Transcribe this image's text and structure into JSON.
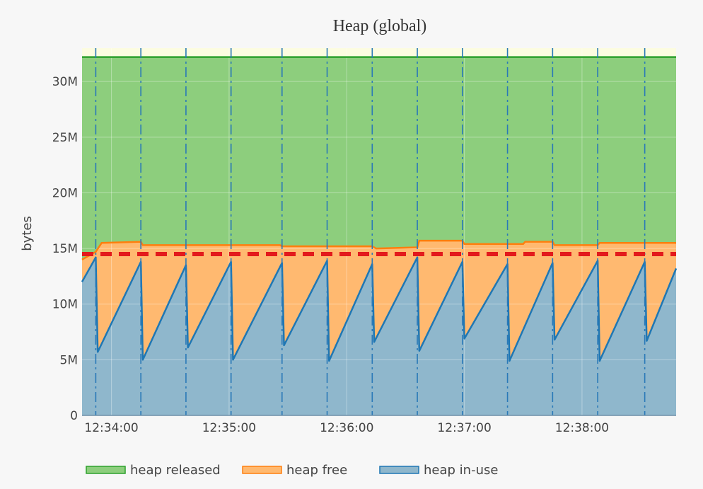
{
  "chart_data": {
    "type": "area",
    "title": "Heap (global)",
    "xlabel": "",
    "ylabel": "bytes",
    "x_range": [
      "12:33:45",
      "12:38:48"
    ],
    "ylim": [
      0,
      33000000
    ],
    "y_ticks": [
      {
        "value": 0,
        "label": "0"
      },
      {
        "value": 5000000,
        "label": "5M"
      },
      {
        "value": 10000000,
        "label": "10M"
      },
      {
        "value": 15000000,
        "label": "15M"
      },
      {
        "value": 20000000,
        "label": "20M"
      },
      {
        "value": 25000000,
        "label": "25M"
      },
      {
        "value": 30000000,
        "label": "30M"
      }
    ],
    "x_ticks": [
      {
        "time": "12:34:00",
        "label": "12:34:00"
      },
      {
        "time": "12:35:00",
        "label": "12:35:00"
      },
      {
        "time": "12:36:00",
        "label": "12:36:00"
      },
      {
        "time": "12:37:00",
        "label": "12:37:00"
      },
      {
        "time": "12:38:00",
        "label": "12:38:00"
      }
    ],
    "grid": true,
    "legend_position": "bottom",
    "gc_events": [
      "12:33:52",
      "12:34:15",
      "12:34:38",
      "12:35:01",
      "12:35:27",
      "12:35:50",
      "12:36:13",
      "12:36:36",
      "12:36:59",
      "12:37:22",
      "12:37:45",
      "12:38:08",
      "12:38:32"
    ],
    "next_gc_target": 14500000,
    "heap_released_total": 32200000,
    "heap_free_top": {
      "time": [
        "12:33:45",
        "12:33:52",
        "12:33:55",
        "12:34:15",
        "12:34:16",
        "12:35:26",
        "12:35:27",
        "12:36:13",
        "12:36:15",
        "12:36:36",
        "12:36:37",
        "12:36:59",
        "12:37:00",
        "12:37:30",
        "12:37:31",
        "12:37:45",
        "12:37:46",
        "12:38:08",
        "12:38:09",
        "12:38:48"
      ],
      "bytes": [
        14000000,
        14700000,
        15500000,
        15600000,
        15300000,
        15300000,
        15200000,
        15200000,
        15000000,
        15100000,
        15700000,
        15700000,
        15400000,
        15400000,
        15600000,
        15600000,
        15300000,
        15300000,
        15500000,
        15500000
      ]
    },
    "series": [
      {
        "name": "heap released",
        "color": "#2ca02c",
        "fill": "#8dce7d"
      },
      {
        "name": "heap free",
        "color": "#ff7f0e",
        "fill": "#ffb970"
      },
      {
        "name": "heap in-use",
        "color": "#1f77b4",
        "fill": "#8fb7cc"
      }
    ],
    "heap_in_use": {
      "time": [
        "12:33:45",
        "12:33:52",
        "12:33:53",
        "12:34:15",
        "12:34:16",
        "12:34:38",
        "12:34:39",
        "12:35:01",
        "12:35:02",
        "12:35:27",
        "12:35:28",
        "12:35:50",
        "12:35:51",
        "12:36:13",
        "12:36:14",
        "12:36:36",
        "12:36:37",
        "12:36:59",
        "12:37:00",
        "12:37:22",
        "12:37:23",
        "12:37:45",
        "12:37:46",
        "12:38:08",
        "12:38:09",
        "12:38:32",
        "12:38:33",
        "12:38:48"
      ],
      "bytes": [
        12000000,
        14200000,
        5700000,
        13800000,
        5000000,
        13500000,
        6100000,
        13800000,
        5000000,
        13700000,
        6300000,
        13900000,
        4900000,
        13600000,
        6600000,
        14200000,
        5800000,
        13800000,
        6900000,
        13600000,
        4900000,
        13700000,
        6800000,
        13900000,
        4900000,
        13800000,
        6700000,
        13200000
      ]
    }
  }
}
